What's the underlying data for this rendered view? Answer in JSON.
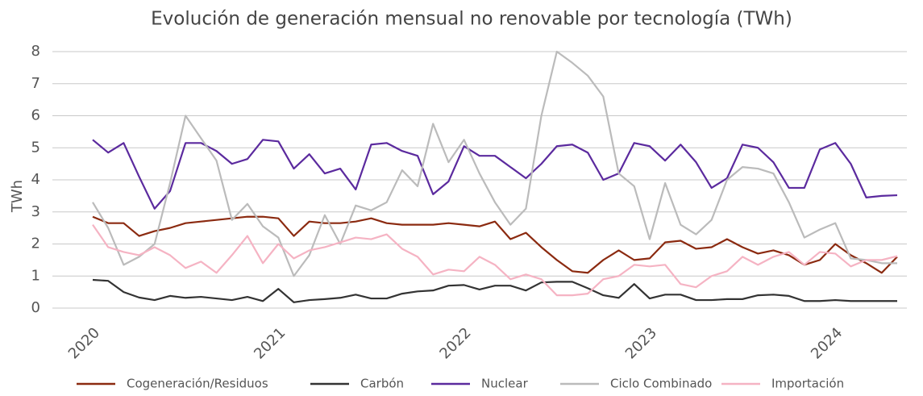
{
  "chart_data": {
    "type": "line",
    "title": "Evolución de generación mensual no renovable por tecnología (TWh)",
    "y_label": "TWh",
    "categories": [
      "2020",
      null,
      null,
      null,
      null,
      null,
      null,
      null,
      null,
      null,
      null,
      null,
      "2021",
      null,
      null,
      null,
      null,
      null,
      null,
      null,
      null,
      null,
      null,
      null,
      "2022",
      null,
      null,
      null,
      null,
      null,
      null,
      null,
      null,
      null,
      null,
      null,
      "2023",
      null,
      null,
      null,
      null,
      null,
      null,
      null,
      null,
      null,
      null,
      null,
      "2024",
      null,
      null,
      null,
      null
    ],
    "ylim": [
      0,
      8
    ],
    "yticks": [
      0,
      1,
      2,
      3,
      4,
      5,
      6,
      7,
      8
    ],
    "grid": true,
    "legend": "bottom",
    "series": [
      {
        "name": "Cogeneración/Residuos",
        "color": "#8b2a10",
        "values": [
          2.85,
          2.65,
          2.65,
          2.25,
          2.4,
          2.5,
          2.65,
          2.7,
          2.75,
          2.8,
          2.85,
          2.85,
          2.8,
          2.25,
          2.7,
          2.65,
          2.65,
          2.7,
          2.8,
          2.65,
          2.6,
          2.6,
          2.6,
          2.65,
          2.6,
          2.55,
          2.7,
          2.15,
          2.35,
          1.9,
          1.5,
          1.15,
          1.1,
          1.5,
          1.8,
          1.5,
          1.55,
          2.05,
          2.1,
          1.85,
          1.9,
          2.15,
          1.9,
          1.7,
          1.8,
          1.65,
          1.35,
          1.5,
          2.0,
          1.65,
          1.4,
          1.1,
          1.6
        ]
      },
      {
        "name": "Carbón",
        "color": "#333333",
        "values": [
          0.88,
          0.85,
          0.5,
          0.33,
          0.25,
          0.38,
          0.32,
          0.35,
          0.3,
          0.25,
          0.35,
          0.22,
          0.6,
          0.18,
          0.25,
          0.28,
          0.32,
          0.42,
          0.3,
          0.3,
          0.45,
          0.52,
          0.55,
          0.7,
          0.72,
          0.58,
          0.7,
          0.7,
          0.55,
          0.8,
          0.82,
          0.82,
          0.62,
          0.4,
          0.32,
          0.75,
          0.3,
          0.42,
          0.42,
          0.25,
          0.25,
          0.28,
          0.28,
          0.4,
          0.42,
          0.38,
          0.22,
          0.22,
          0.25,
          0.22,
          0.22,
          0.22,
          0.22
        ]
      },
      {
        "name": "Nuclear",
        "color": "#5b2a9e",
        "values": [
          5.25,
          4.85,
          5.15,
          4.1,
          3.1,
          3.65,
          5.15,
          5.15,
          4.9,
          4.5,
          4.65,
          5.25,
          5.2,
          4.35,
          4.8,
          4.2,
          4.35,
          3.7,
          5.1,
          5.15,
          4.9,
          4.75,
          3.55,
          3.95,
          5.05,
          4.75,
          4.75,
          4.4,
          4.05,
          4.5,
          5.05,
          5.1,
          4.85,
          4.0,
          4.2,
          5.15,
          5.05,
          4.6,
          5.1,
          4.55,
          3.75,
          4.05,
          5.1,
          5.0,
          4.55,
          3.75,
          3.75,
          4.95,
          5.15,
          4.5,
          3.45,
          3.5,
          3.52
        ]
      },
      {
        "name": "Ciclo Combinado",
        "color": "#bbbbbb",
        "values": [
          3.3,
          2.5,
          1.35,
          1.6,
          2.0,
          3.9,
          6.0,
          5.3,
          4.6,
          2.75,
          3.25,
          2.55,
          2.2,
          1.0,
          1.65,
          2.9,
          2.0,
          3.2,
          3.05,
          3.3,
          4.3,
          3.8,
          5.75,
          4.55,
          5.25,
          4.2,
          3.3,
          2.6,
          3.1,
          6.0,
          8.0,
          7.65,
          7.25,
          6.6,
          4.2,
          3.8,
          2.15,
          3.9,
          2.6,
          2.3,
          2.75,
          4.0,
          4.4,
          4.35,
          4.2,
          3.3,
          2.2,
          2.45,
          2.65,
          1.55,
          1.5,
          1.4,
          1.4
        ]
      },
      {
        "name": "Importación",
        "color": "#f5b3c3",
        "values": [
          2.6,
          1.9,
          1.75,
          1.65,
          1.9,
          1.65,
          1.25,
          1.45,
          1.1,
          1.65,
          2.25,
          1.4,
          2.0,
          1.55,
          1.8,
          1.9,
          2.05,
          2.2,
          2.15,
          2.3,
          1.85,
          1.6,
          1.05,
          1.2,
          1.15,
          1.6,
          1.35,
          0.9,
          1.05,
          0.9,
          0.4,
          0.4,
          0.45,
          0.9,
          1.0,
          1.35,
          1.3,
          1.35,
          0.75,
          0.65,
          1.0,
          1.15,
          1.6,
          1.35,
          1.6,
          1.75,
          1.35,
          1.75,
          1.7,
          1.3,
          1.5,
          1.5,
          1.62
        ]
      }
    ]
  }
}
